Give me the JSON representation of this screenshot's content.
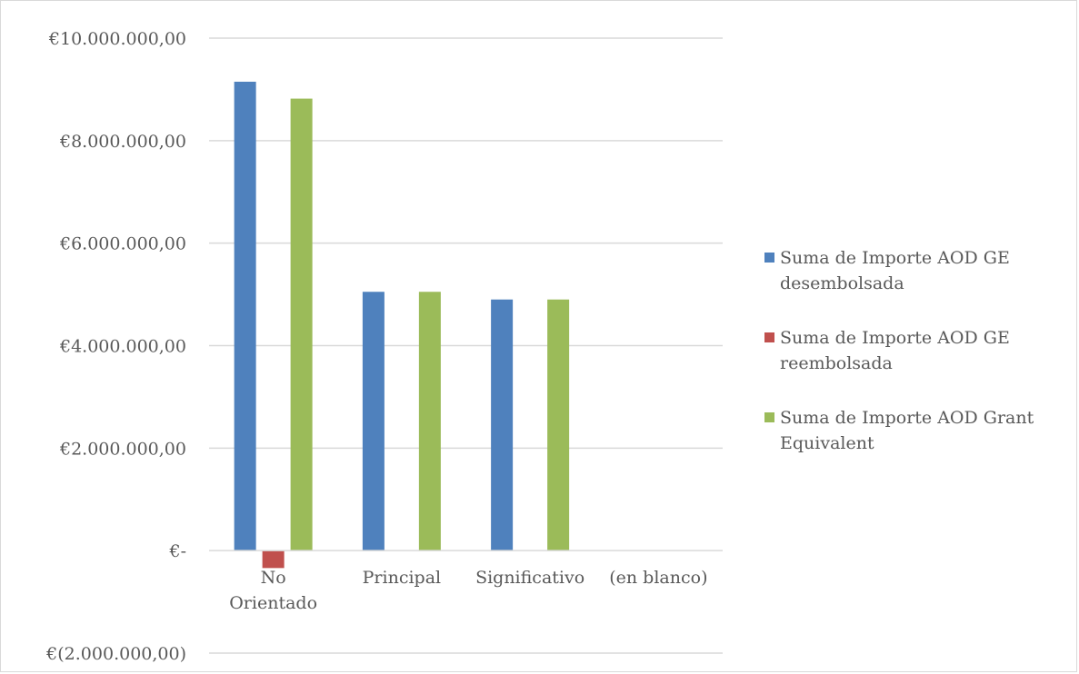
{
  "chart_data": {
    "type": "bar",
    "categories": [
      "No Orientado",
      "Principal",
      "Significativo",
      "(en blanco)"
    ],
    "category_lines": [
      [
        "No",
        "Orientado"
      ],
      [
        "Principal"
      ],
      [
        "Significativo"
      ],
      [
        "(en blanco)"
      ]
    ],
    "series": [
      {
        "name": "Suma de Importe AOD GE desembolsada",
        "name_lines": [
          "Suma de Importe AOD GE",
          "desembolsada"
        ],
        "color": "#4F81BD",
        "values": [
          9150000,
          5050000,
          4900000,
          null
        ]
      },
      {
        "name": "Suma de Importe AOD GE reembolsada",
        "name_lines": [
          "Suma de Importe AOD GE",
          "reembolsada"
        ],
        "color": "#C0504D",
        "values": [
          -340000,
          null,
          null,
          null
        ]
      },
      {
        "name": "Suma de Importe AOD Grant Equivalent",
        "name_lines": [
          "Suma de Importe AOD Grant",
          "Equivalent"
        ],
        "color": "#9BBB59",
        "values": [
          8820000,
          5050000,
          4900000,
          null
        ]
      }
    ],
    "ylim": [
      -2000000,
      10000000
    ],
    "yticks": [
      10000000,
      8000000,
      6000000,
      4000000,
      2000000,
      0,
      -2000000
    ],
    "ytick_labels": [
      "€10.000.000,00",
      "€8.000.000,00",
      "€6.000.000,00",
      "€4.000.000,00",
      "€2.000.000,00",
      "€-",
      "€(2.000.000,00)"
    ],
    "grid": true,
    "legend_position": "right",
    "title": "",
    "xlabel": "",
    "ylabel": ""
  }
}
